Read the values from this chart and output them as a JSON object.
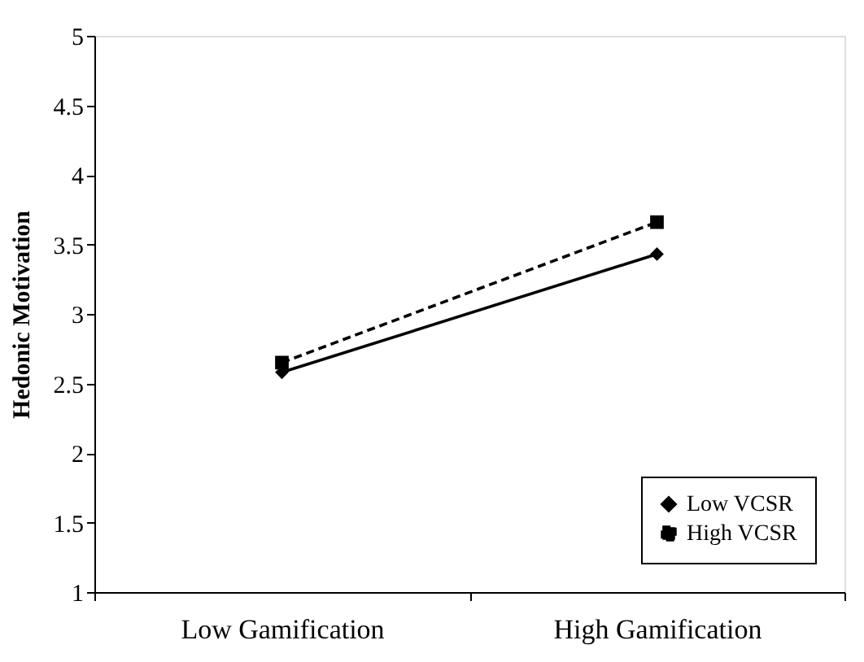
{
  "chart_data": {
    "type": "line",
    "ylabel": "Hedonic Motivation",
    "categories": [
      "Low Gamification",
      "High Gamification"
    ],
    "series": [
      {
        "name": "Low VCSR",
        "color": "#000000",
        "values": [
          2.58,
          3.43
        ],
        "marker": "diamond",
        "line_style": "solid"
      },
      {
        "name": "High VCSR",
        "color": "#000000",
        "values": [
          2.65,
          3.66
        ],
        "marker": "square",
        "line_style": "dashed"
      }
    ],
    "ylim": [
      1,
      5
    ],
    "yticks": [
      1,
      1.5,
      2,
      2.5,
      3,
      3.5,
      4,
      4.5,
      5
    ],
    "grid": false,
    "legend": "bottom right"
  }
}
